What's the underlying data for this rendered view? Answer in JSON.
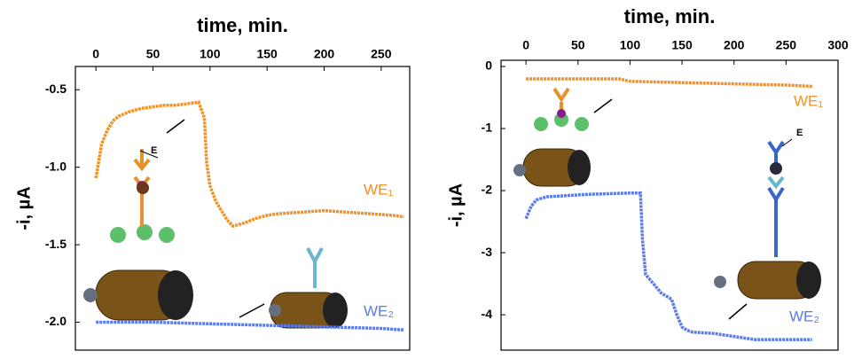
{
  "chart_data": [
    {
      "type": "line",
      "x_label": "time, min.",
      "y_label": "-i, µA",
      "xlim": [
        -18,
        275
      ],
      "xticks": [
        0,
        50,
        100,
        150,
        200,
        250
      ],
      "ylim": [
        -2.18,
        -0.35
      ],
      "yticks": [
        -0.5,
        {
          "value": -1,
          "label": "-1.0"
        },
        -1.5,
        {
          "value": -2,
          "label": "-2.0"
        }
      ],
      "annotations": [
        "E"
      ],
      "series": [
        {
          "name": "WE₁",
          "color": "#f7901e",
          "x": [
            0,
            5,
            10,
            15,
            20,
            30,
            40,
            50,
            60,
            70,
            80,
            90,
            95,
            97,
            100,
            105,
            110,
            115,
            120,
            130,
            140,
            150,
            160,
            180,
            200,
            220,
            240,
            260,
            270
          ],
          "values": [
            -1.07,
            -0.85,
            -0.76,
            -0.7,
            -0.67,
            -0.64,
            -0.62,
            -0.61,
            -0.6,
            -0.6,
            -0.59,
            -0.58,
            -0.68,
            -0.97,
            -1.12,
            -1.22,
            -1.28,
            -1.34,
            -1.38,
            -1.36,
            -1.33,
            -1.31,
            -1.3,
            -1.29,
            -1.28,
            -1.29,
            -1.3,
            -1.31,
            -1.32
          ]
        },
        {
          "name": "WE₂",
          "color": "#5b7be8",
          "x": [
            0,
            50,
            100,
            150,
            200,
            250,
            270
          ],
          "values": [
            -2.0,
            -2.0,
            -2.01,
            -2.02,
            -2.03,
            -2.04,
            -2.05
          ]
        }
      ]
    },
    {
      "type": "line",
      "x_label": "time, min.",
      "y_label": "-i, µA",
      "xlim": [
        -24,
        300
      ],
      "xticks": [
        0,
        50,
        100,
        150,
        200,
        250,
        300
      ],
      "ylim": [
        -4.57,
        0.1
      ],
      "yticks": [
        0,
        -1,
        -2,
        -3,
        -4
      ],
      "annotations": [
        "E"
      ],
      "series": [
        {
          "name": "WE₁",
          "color": "#f7901e",
          "x": [
            0,
            50,
            90,
            100,
            150,
            200,
            250,
            275
          ],
          "values": [
            -0.2,
            -0.2,
            -0.2,
            -0.24,
            -0.26,
            -0.28,
            -0.3,
            -0.32
          ]
        },
        {
          "name": "WE₂",
          "color": "#5b7be8",
          "x": [
            0,
            5,
            10,
            20,
            40,
            60,
            80,
            100,
            110,
            112,
            115,
            120,
            125,
            130,
            140,
            145,
            150,
            155,
            160,
            180,
            200,
            220,
            250,
            275
          ],
          "values": [
            -2.45,
            -2.25,
            -2.15,
            -2.1,
            -2.08,
            -2.06,
            -2.05,
            -2.04,
            -2.04,
            -2.8,
            -3.35,
            -3.45,
            -3.55,
            -3.65,
            -3.75,
            -4.0,
            -4.2,
            -4.25,
            -4.28,
            -4.3,
            -4.35,
            -4.4,
            -4.4,
            -4.4
          ]
        }
      ]
    }
  ]
}
